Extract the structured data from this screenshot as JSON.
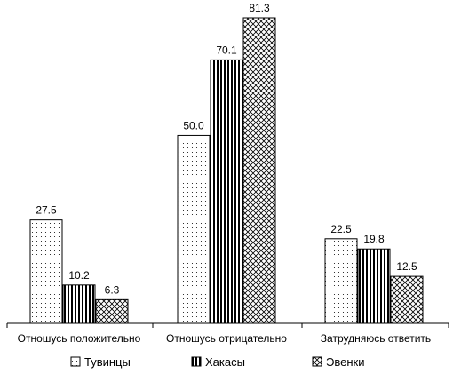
{
  "chart_data": {
    "type": "bar",
    "categories": [
      "Отношусь положительно",
      "Отношусь отрицательно",
      "Затрудняюсь ответить"
    ],
    "series": [
      {
        "name": "Тувинцы",
        "values": [
          27.5,
          50.0,
          22.5
        ],
        "pattern": "dots"
      },
      {
        "name": "Хакасы",
        "values": [
          10.2,
          70.1,
          19.8
        ],
        "pattern": "vertical-stripes"
      },
      {
        "name": "Эвенки",
        "values": [
          6.3,
          81.3,
          12.5
        ],
        "pattern": "crosshatch"
      }
    ],
    "value_labels": [
      [
        "27.5",
        "50.0",
        "22.5"
      ],
      [
        "10.2",
        "70.1",
        "19.8"
      ],
      [
        "6.3",
        "81.3",
        "12.5"
      ]
    ],
    "ylim": [
      0,
      90
    ],
    "grid": false,
    "legend_position": "bottom",
    "colors": {
      "bar_fill": "#ffffff",
      "stroke": "#000000"
    }
  }
}
